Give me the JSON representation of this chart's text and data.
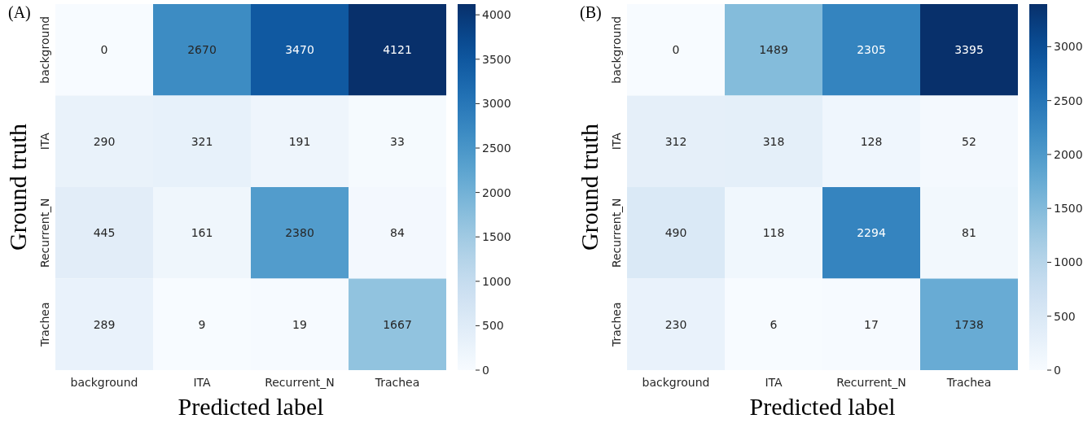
{
  "chart_data": [
    {
      "type": "heatmap",
      "title": "(A)",
      "xlabel": "Predicted label",
      "ylabel": "Ground truth",
      "categories": [
        "background",
        "ITA",
        "Recurrent_N",
        "Trachea"
      ],
      "y_categories": [
        "background",
        "ITA",
        "Recurrent_N",
        "Trachea"
      ],
      "cells": [
        [
          0,
          2670,
          3470,
          4121
        ],
        [
          290,
          321,
          191,
          33
        ],
        [
          445,
          161,
          2380,
          84
        ],
        [
          289,
          9,
          19,
          1667
        ]
      ],
      "data_labels": true,
      "clim": [
        0,
        4121
      ],
      "cticks": [
        0,
        500,
        1000,
        1500,
        2000,
        2500,
        3000,
        3500,
        4000
      ]
    },
    {
      "type": "heatmap",
      "title": "(B)",
      "xlabel": "Predicted label",
      "ylabel": "Ground truth",
      "categories": [
        "background",
        "ITA",
        "Recurrent_N",
        "Trachea"
      ],
      "y_categories": [
        "background",
        "ITA",
        "Recurrent_N",
        "Trachea"
      ],
      "cells": [
        [
          0,
          1489,
          2305,
          3395
        ],
        [
          312,
          318,
          128,
          52
        ],
        [
          490,
          118,
          2294,
          81
        ],
        [
          230,
          6,
          17,
          1738
        ]
      ],
      "data_labels": true,
      "clim": [
        0,
        3395
      ],
      "cticks": [
        0,
        500,
        1000,
        1500,
        2000,
        2500,
        3000
      ]
    }
  ]
}
